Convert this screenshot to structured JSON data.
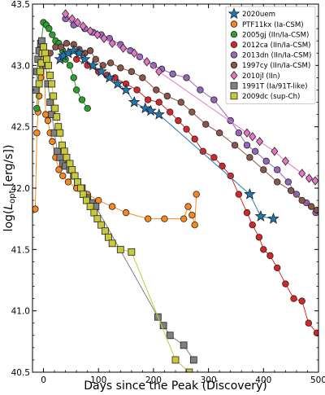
{
  "chart_data": {
    "type": "scatter",
    "xlabel": "Days since the Peak (Discovery)",
    "ylabel_parts": [
      "log(",
      "L",
      "opt",
      " [erg/s])"
    ],
    "xlim": [
      -20,
      500
    ],
    "ylim": [
      40.5,
      43.5
    ],
    "xticks": [
      0,
      100,
      200,
      300,
      400,
      500
    ],
    "yticks": [
      40.5,
      41.0,
      41.5,
      42.0,
      42.5,
      43.0,
      43.5
    ],
    "ytick_labels": [
      "40.5",
      "41.0",
      "41.5",
      "42.0",
      "42.5",
      "43.0",
      "43.5"
    ],
    "xtick_labels": [
      "0",
      "100",
      "200",
      "300",
      "400",
      "500"
    ],
    "legend_position": "top-right",
    "series": [
      {
        "name": "PTF11kx (Ia-CSM)",
        "marker": "circle",
        "color": "#f5891f",
        "line": "#f5891f",
        "points": [
          [
            -15,
            41.83
          ],
          [
            -12,
            42.45
          ],
          [
            -10,
            42.62
          ],
          [
            -8,
            42.75
          ],
          [
            -5,
            42.9
          ],
          [
            -2,
            43.0
          ],
          [
            1,
            43.05
          ],
          [
            4,
            42.6
          ],
          [
            8,
            42.55
          ],
          [
            12,
            42.45
          ],
          [
            16,
            42.38
          ],
          [
            22,
            42.25
          ],
          [
            28,
            42.15
          ],
          [
            35,
            42.1
          ],
          [
            45,
            42.05
          ],
          [
            60,
            42.0
          ],
          [
            80,
            41.95
          ],
          [
            100,
            41.9
          ],
          [
            125,
            41.85
          ],
          [
            150,
            41.8
          ],
          [
            190,
            41.75
          ],
          [
            220,
            41.75
          ],
          [
            255,
            41.75
          ],
          [
            263,
            41.85
          ],
          [
            270,
            41.78
          ],
          [
            275,
            41.7
          ],
          [
            278,
            41.95
          ]
        ]
      },
      {
        "name": "2005gj (IIn/Ia-CSM)",
        "marker": "circle",
        "color": "#2ca02c",
        "line": "#2ca02c",
        "points": [
          [
            -12,
            42.65
          ],
          [
            -8,
            42.95
          ],
          [
            -5,
            43.15
          ],
          [
            0,
            43.35
          ],
          [
            5,
            43.33
          ],
          [
            10,
            43.3
          ],
          [
            16,
            43.25
          ],
          [
            22,
            43.2
          ],
          [
            28,
            43.18
          ],
          [
            35,
            43.12
          ],
          [
            40,
            43.05
          ],
          [
            48,
            43.0
          ],
          [
            55,
            42.9
          ],
          [
            60,
            42.8
          ],
          [
            70,
            42.72
          ],
          [
            80,
            42.65
          ]
        ]
      },
      {
        "name": "2012ca (IIn/Ia-CSM)",
        "marker": "circle",
        "color": "#d62728",
        "line": "#d62728",
        "points": [
          [
            60,
            43.05
          ],
          [
            80,
            43.0
          ],
          [
            100,
            42.95
          ],
          [
            115,
            42.92
          ],
          [
            130,
            42.9
          ],
          [
            150,
            42.85
          ],
          [
            170,
            42.8
          ],
          [
            190,
            42.72
          ],
          [
            210,
            42.7
          ],
          [
            230,
            42.62
          ],
          [
            245,
            42.55
          ],
          [
            260,
            42.48
          ],
          [
            275,
            42.4
          ],
          [
            290,
            42.3
          ],
          [
            310,
            42.25
          ],
          [
            325,
            42.18
          ],
          [
            340,
            42.1
          ],
          [
            355,
            41.95
          ],
          [
            370,
            41.8
          ],
          [
            380,
            41.7
          ],
          [
            392,
            41.6
          ],
          [
            400,
            41.5
          ],
          [
            412,
            41.45
          ],
          [
            425,
            41.35
          ],
          [
            440,
            41.22
          ],
          [
            455,
            41.1
          ],
          [
            470,
            41.08
          ],
          [
            482,
            40.9
          ],
          [
            497,
            40.82
          ]
        ]
      },
      {
        "name": "2013dn (IIn/Ia-CSM)",
        "marker": "circle",
        "color": "#9467bd",
        "line": "#9467bd",
        "points": [
          [
            40,
            43.38
          ],
          [
            55,
            43.33
          ],
          [
            75,
            43.3
          ],
          [
            90,
            43.27
          ],
          [
            105,
            43.25
          ],
          [
            120,
            43.22
          ],
          [
            140,
            43.17
          ],
          [
            158,
            43.12
          ],
          [
            175,
            43.07
          ],
          [
            200,
            43.0
          ],
          [
            215,
            42.97
          ],
          [
            235,
            42.93
          ],
          [
            260,
            42.9
          ],
          [
            285,
            42.8
          ],
          [
            310,
            42.72
          ],
          [
            340,
            42.55
          ],
          [
            355,
            42.45
          ],
          [
            370,
            42.35
          ],
          [
            385,
            42.3
          ],
          [
            405,
            42.22
          ],
          [
            425,
            42.15
          ],
          [
            445,
            42.05
          ],
          [
            460,
            41.95
          ],
          [
            478,
            41.88
          ],
          [
            495,
            41.8
          ]
        ]
      },
      {
        "name": "1997cy (IIn/Ia-CSM)",
        "marker": "circle",
        "color": "#8c564b",
        "line": "#8c564b",
        "points": [
          [
            5,
            43.08
          ],
          [
            12,
            43.1
          ],
          [
            22,
            43.15
          ],
          [
            32,
            43.15
          ],
          [
            42,
            43.18
          ],
          [
            55,
            43.17
          ],
          [
            65,
            43.13
          ],
          [
            75,
            43.1
          ],
          [
            85,
            43.12
          ],
          [
            95,
            43.05
          ],
          [
            108,
            43.0
          ],
          [
            122,
            43.02
          ],
          [
            140,
            42.98
          ],
          [
            160,
            42.95
          ],
          [
            180,
            42.9
          ],
          [
            205,
            42.8
          ],
          [
            225,
            42.75
          ],
          [
            250,
            42.7
          ],
          [
            270,
            42.62
          ],
          [
            295,
            42.52
          ],
          [
            320,
            42.45
          ],
          [
            348,
            42.35
          ],
          [
            375,
            42.25
          ],
          [
            400,
            42.15
          ],
          [
            425,
            42.05
          ],
          [
            450,
            41.98
          ],
          [
            470,
            41.9
          ],
          [
            487,
            41.85
          ],
          [
            497,
            41.82
          ]
        ]
      },
      {
        "name": "2010jl (IIn)",
        "marker": "diamond",
        "color": "#e377c2",
        "line": "#e377c2",
        "points": [
          [
            40,
            43.42
          ],
          [
            52,
            43.38
          ],
          [
            62,
            43.35
          ],
          [
            72,
            43.32
          ],
          [
            85,
            43.28
          ],
          [
            98,
            43.25
          ],
          [
            110,
            43.22
          ],
          [
            125,
            43.18
          ],
          [
            145,
            43.14
          ],
          [
            165,
            43.1
          ],
          [
            188,
            43.03
          ],
          [
            210,
            42.95
          ],
          [
            370,
            42.45
          ],
          [
            380,
            42.42
          ],
          [
            393,
            42.38
          ],
          [
            420,
            42.3
          ],
          [
            440,
            42.22
          ],
          [
            470,
            42.12
          ],
          [
            483,
            42.08
          ],
          [
            494,
            42.06
          ]
        ]
      },
      {
        "name": "1991T (Ia/91T-like)",
        "marker": "square",
        "color": "#808080",
        "line": "#808080",
        "points": [
          [
            -14,
            42.8
          ],
          [
            -12,
            42.95
          ],
          [
            -10,
            43.05
          ],
          [
            -8,
            43.12
          ],
          [
            -5,
            43.18
          ],
          [
            -3,
            43.2
          ],
          [
            0,
            43.15
          ],
          [
            4,
            43.0
          ],
          [
            8,
            42.85
          ],
          [
            12,
            42.7
          ],
          [
            15,
            42.6
          ],
          [
            20,
            42.45
          ],
          [
            25,
            42.3
          ],
          [
            30,
            42.25
          ],
          [
            35,
            42.2
          ],
          [
            40,
            42.18
          ],
          [
            48,
            42.15
          ],
          [
            55,
            42.1
          ],
          [
            62,
            42.05
          ],
          [
            70,
            42.0
          ],
          [
            80,
            41.92
          ],
          [
            88,
            41.88
          ],
          [
            95,
            41.85
          ],
          [
            208,
            40.95
          ],
          [
            218,
            40.88
          ],
          [
            230,
            40.8
          ],
          [
            255,
            40.72
          ],
          [
            273,
            40.6
          ]
        ]
      },
      {
        "name": "2009dc (sup-Ch)",
        "marker": "square",
        "color": "#c8c83c",
        "line": "#c8c83c",
        "points": [
          [
            -8,
            42.85
          ],
          [
            -6,
            42.95
          ],
          [
            -4,
            43.02
          ],
          [
            -2,
            43.1
          ],
          [
            0,
            43.15
          ],
          [
            3,
            43.1
          ],
          [
            6,
            43.05
          ],
          [
            9,
            43.0
          ],
          [
            12,
            42.92
          ],
          [
            15,
            42.85
          ],
          [
            18,
            42.75
          ],
          [
            21,
            42.65
          ],
          [
            24,
            42.58
          ],
          [
            27,
            42.5
          ],
          [
            30,
            42.45
          ],
          [
            34,
            42.35
          ],
          [
            38,
            42.3
          ],
          [
            42,
            42.25
          ],
          [
            48,
            42.2
          ],
          [
            52,
            42.15
          ],
          [
            57,
            42.1
          ],
          [
            62,
            42.05
          ],
          [
            68,
            42.0
          ],
          [
            72,
            41.95
          ],
          [
            78,
            41.9
          ],
          [
            85,
            41.85
          ],
          [
            92,
            41.8
          ],
          [
            98,
            41.75
          ],
          [
            105,
            41.7
          ],
          [
            112,
            41.65
          ],
          [
            118,
            41.6
          ],
          [
            125,
            41.55
          ],
          [
            140,
            41.5
          ],
          [
            160,
            41.48
          ],
          [
            240,
            40.6
          ],
          [
            265,
            40.5
          ]
        ]
      },
      {
        "name": "2020uem",
        "marker": "star",
        "color": "#1f77b4",
        "line": "#1f77b4",
        "points": [
          [
            30,
            43.05
          ],
          [
            36,
            43.08
          ],
          [
            45,
            43.1
          ],
          [
            55,
            43.12
          ],
          [
            65,
            43.1
          ],
          [
            75,
            43.05
          ],
          [
            90,
            43.0
          ],
          [
            105,
            42.95
          ],
          [
            120,
            42.9
          ],
          [
            135,
            42.85
          ],
          [
            150,
            42.8
          ],
          [
            165,
            42.7
          ],
          [
            185,
            42.65
          ],
          [
            195,
            42.63
          ],
          [
            210,
            42.6
          ],
          [
            375,
            41.95
          ],
          [
            395,
            41.77
          ],
          [
            418,
            41.75
          ]
        ]
      }
    ],
    "legend_order": [
      "2020uem",
      "PTF11kx (Ia-CSM)",
      "2005gj (IIn/Ia-CSM)",
      "2012ca (IIn/Ia-CSM)",
      "2013dn (IIn/Ia-CSM)",
      "1997cy (IIn/Ia-CSM)",
      "2010jl (IIn)",
      "1991T (Ia/91T-like)",
      "2009dc (sup-Ch)"
    ]
  }
}
